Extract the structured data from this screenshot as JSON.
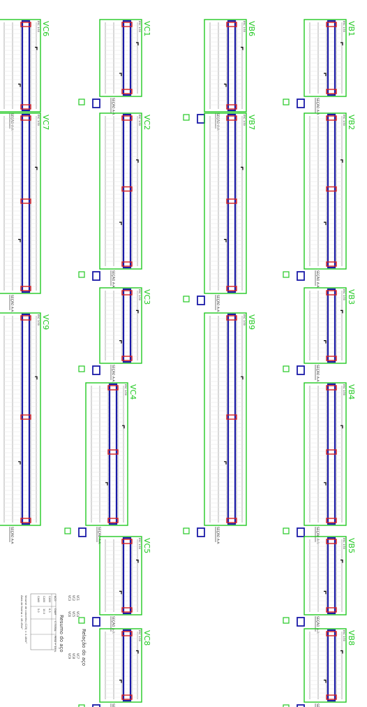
{
  "colors": {
    "beam_outline": "#1a1aa8",
    "frame": "#22c922",
    "bars": "#cfcfcf",
    "support": "#d81f1f",
    "stirrup": "#9a9aa0",
    "text": "#222222",
    "title": "#22c922",
    "hook": "#000000"
  },
  "beams": [
    {
      "id": "VB1",
      "title": "VB1",
      "scale": "ESC 1:50",
      "section": "SEÇÃO A-A"
    },
    {
      "id": "VB2",
      "title": "VB2",
      "scale": "ESC 1:50",
      "section": "SEÇÃO A-A"
    },
    {
      "id": "VB3",
      "title": "VB3",
      "scale": "ESC 1:50",
      "section": "SEÇÃO A-A"
    },
    {
      "id": "VB4",
      "title": "VB4",
      "scale": "ESC 1:50",
      "section": "SEÇÃO A-A"
    },
    {
      "id": "VB5",
      "title": "VB5",
      "scale": "ESC 1:50",
      "section": "SEÇÃO A-A"
    },
    {
      "id": "VB8",
      "title": "VB8",
      "scale": "ESC 1:50",
      "section": "SEÇÃO A-A"
    },
    {
      "id": "VB6",
      "title": "VB6",
      "scale": "ESC 1:50",
      "section": "SEÇÃO A-A"
    },
    {
      "id": "VB7",
      "title": "VB7",
      "scale": "ESC 1:50",
      "section": "SEÇÃO A-A"
    },
    {
      "id": "VB9",
      "title": "VB9",
      "scale": "ESC 1:50",
      "section": "SEÇÃO A-A"
    },
    {
      "id": "VC1",
      "title": "VC1",
      "scale": "ESC 1:50",
      "section": "SEÇÃO A-A"
    },
    {
      "id": "VC2",
      "title": "VC2",
      "scale": "ESC 1:50",
      "section": "SEÇÃO A-A"
    },
    {
      "id": "VC3",
      "title": "VC3",
      "scale": "ESC 1:50",
      "section": "SEÇÃO A-A"
    },
    {
      "id": "VC4",
      "title": "VC4",
      "scale": "ESC 1:50",
      "section": "SEÇÃO A-A"
    },
    {
      "id": "VC5",
      "title": "VC5",
      "scale": "ESC 1:50",
      "section": "SEÇÃO A-A"
    },
    {
      "id": "VC8",
      "title": "VC8",
      "scale": "ESC 1:50",
      "section": "SEÇÃO A-A"
    },
    {
      "id": "VC6",
      "title": "VC6",
      "scale": "ESC 1:50",
      "section": "SEÇÃO A-A"
    },
    {
      "id": "VC7",
      "title": "VC7",
      "scale": "ESC 1:50",
      "section": "SEÇÃO A-A"
    },
    {
      "id": "VC9",
      "title": "VC9",
      "scale": "ESC 1:50",
      "section": "SEÇÃO A-A"
    }
  ],
  "summary": {
    "relation_title": "Relação do aço",
    "relation_rows": [
      "VC1",
      "VC2",
      "VC3",
      "VC4",
      "VC5",
      "VC6",
      "VC7",
      "VC8",
      "VC9"
    ],
    "resume_title": "Resumo do aço",
    "resume_headers": [
      "AÇO",
      "DIAM",
      "C.TOTAL",
      "PESO + 10 %"
    ],
    "resume_rows": [
      [
        "CA50",
        "6.3",
        "",
        ""
      ],
      [
        "CA50",
        "10.0",
        "",
        ""
      ],
      [
        "CA60",
        "5.0",
        "",
        ""
      ]
    ],
    "note_lines": [
      "Volume de concreto (C25) = 4.46m³",
      "Área de forma = 48.45m²"
    ]
  }
}
